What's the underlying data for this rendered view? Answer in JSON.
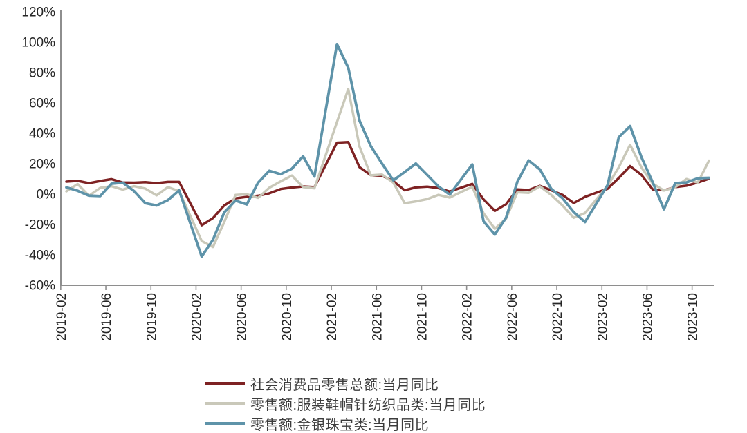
{
  "chart_data": {
    "type": "line",
    "x": [
      "2019-02",
      "2019-03",
      "2019-04",
      "2019-05",
      "2019-06",
      "2019-07",
      "2019-08",
      "2019-09",
      "2019-10",
      "2019-11",
      "2019-12",
      "2020-01",
      "2020-02",
      "2020-03",
      "2020-04",
      "2020-05",
      "2020-06",
      "2020-07",
      "2020-08",
      "2020-09",
      "2020-10",
      "2020-11",
      "2020-12",
      "2021-01",
      "2021-02",
      "2021-03",
      "2021-04",
      "2021-05",
      "2021-06",
      "2021-07",
      "2021-08",
      "2021-09",
      "2021-10",
      "2021-11",
      "2021-12",
      "2022-01",
      "2022-02",
      "2022-03",
      "2022-04",
      "2022-05",
      "2022-06",
      "2022-07",
      "2022-08",
      "2022-09",
      "2022-10",
      "2022-11",
      "2022-12",
      "2023-01",
      "2023-02",
      "2023-03",
      "2023-04",
      "2023-05",
      "2023-06",
      "2023-07",
      "2023-08",
      "2023-09",
      "2023-10",
      "2023-11"
    ],
    "series": [
      {
        "name": "社会消费品零售总额:当月同比",
        "color": "#7e2223",
        "values": [
          8.2,
          8.7,
          7.2,
          8.6,
          9.8,
          7.6,
          7.5,
          7.8,
          7.2,
          8.0,
          8.0,
          -6.2,
          -20.5,
          -15.8,
          -7.5,
          -2.8,
          -1.8,
          -1.1,
          0.5,
          3.3,
          4.3,
          5.0,
          4.6,
          19.2,
          33.8,
          34.2,
          17.7,
          12.4,
          12.1,
          8.5,
          2.5,
          4.4,
          4.9,
          3.9,
          1.7,
          4.2,
          6.7,
          -3.5,
          -11.1,
          -6.7,
          3.1,
          2.7,
          5.4,
          2.5,
          -0.5,
          -5.9,
          -1.8,
          0.9,
          3.5,
          10.6,
          18.4,
          12.7,
          3.1,
          2.5,
          4.6,
          5.5,
          7.6,
          10.1
        ]
      },
      {
        "name": "零售额:服装鞋帽针纺织品类:当月同比",
        "color": "#c9c8b9",
        "values": [
          1.8,
          6.6,
          -1.1,
          4.1,
          5.2,
          2.9,
          5.2,
          3.6,
          -0.8,
          4.6,
          1.9,
          -14.5,
          -30.9,
          -34.8,
          -18.5,
          -0.6,
          -0.1,
          -2.5,
          4.2,
          8.3,
          12.2,
          4.6,
          3.8,
          25.6,
          47.4,
          69.1,
          31.2,
          12.3,
          12.8,
          7.5,
          -6.0,
          -4.8,
          -3.3,
          -0.5,
          -2.3,
          1.3,
          4.8,
          -12.7,
          -22.8,
          -16.2,
          1.2,
          0.8,
          5.1,
          -0.5,
          -7.5,
          -15.6,
          -12.5,
          -3.6,
          5.4,
          17.7,
          32.4,
          17.6,
          6.9,
          2.3,
          4.5,
          9.9,
          7.5,
          22.0
        ]
      },
      {
        "name": "零售额:金银珠宝类:当月同比",
        "color": "#5e93a9",
        "values": [
          4.4,
          2.2,
          -1.0,
          -1.3,
          6.8,
          7.5,
          2.0,
          -6.0,
          -7.5,
          -4.0,
          2.4,
          -19.4,
          -41.1,
          -30.1,
          -12.1,
          -4.3,
          -6.8,
          7.5,
          15.3,
          13.1,
          16.7,
          24.8,
          11.6,
          55.2,
          98.7,
          83.2,
          48.3,
          31.5,
          20.0,
          9.0,
          14.5,
          20.1,
          12.6,
          5.0,
          -0.3,
          9.6,
          19.5,
          -17.9,
          -26.7,
          -15.5,
          8.1,
          22.1,
          16.2,
          3.5,
          -2.7,
          -11.9,
          -18.4,
          -6.3,
          5.9,
          37.4,
          44.7,
          24.4,
          7.8,
          -10.0,
          7.2,
          7.7,
          10.4,
          10.7
        ]
      }
    ],
    "title": "",
    "xlabel": "",
    "ylabel": "",
    "ylim": [
      -60,
      120
    ],
    "y_axis": {
      "tick_labels": [
        "120%",
        "100%",
        "80%",
        "60%",
        "40%",
        "20%",
        "0%",
        "-20%",
        "-40%",
        "-60%"
      ]
    },
    "x_axis": {
      "tick_labels": [
        "2019-02",
        "2019-06",
        "2019-10",
        "2020-02",
        "2020-06",
        "2020-10",
        "2021-02",
        "2021-06",
        "2021-10",
        "2022-02",
        "2022-06",
        "2022-10",
        "2023-02",
        "2023-06",
        "2023-10"
      ],
      "tick_every_n_points": 4
    },
    "grid": false,
    "legend_position": "bottom-left",
    "axis_color": "#8e8e8e",
    "background": "#ffffff"
  }
}
